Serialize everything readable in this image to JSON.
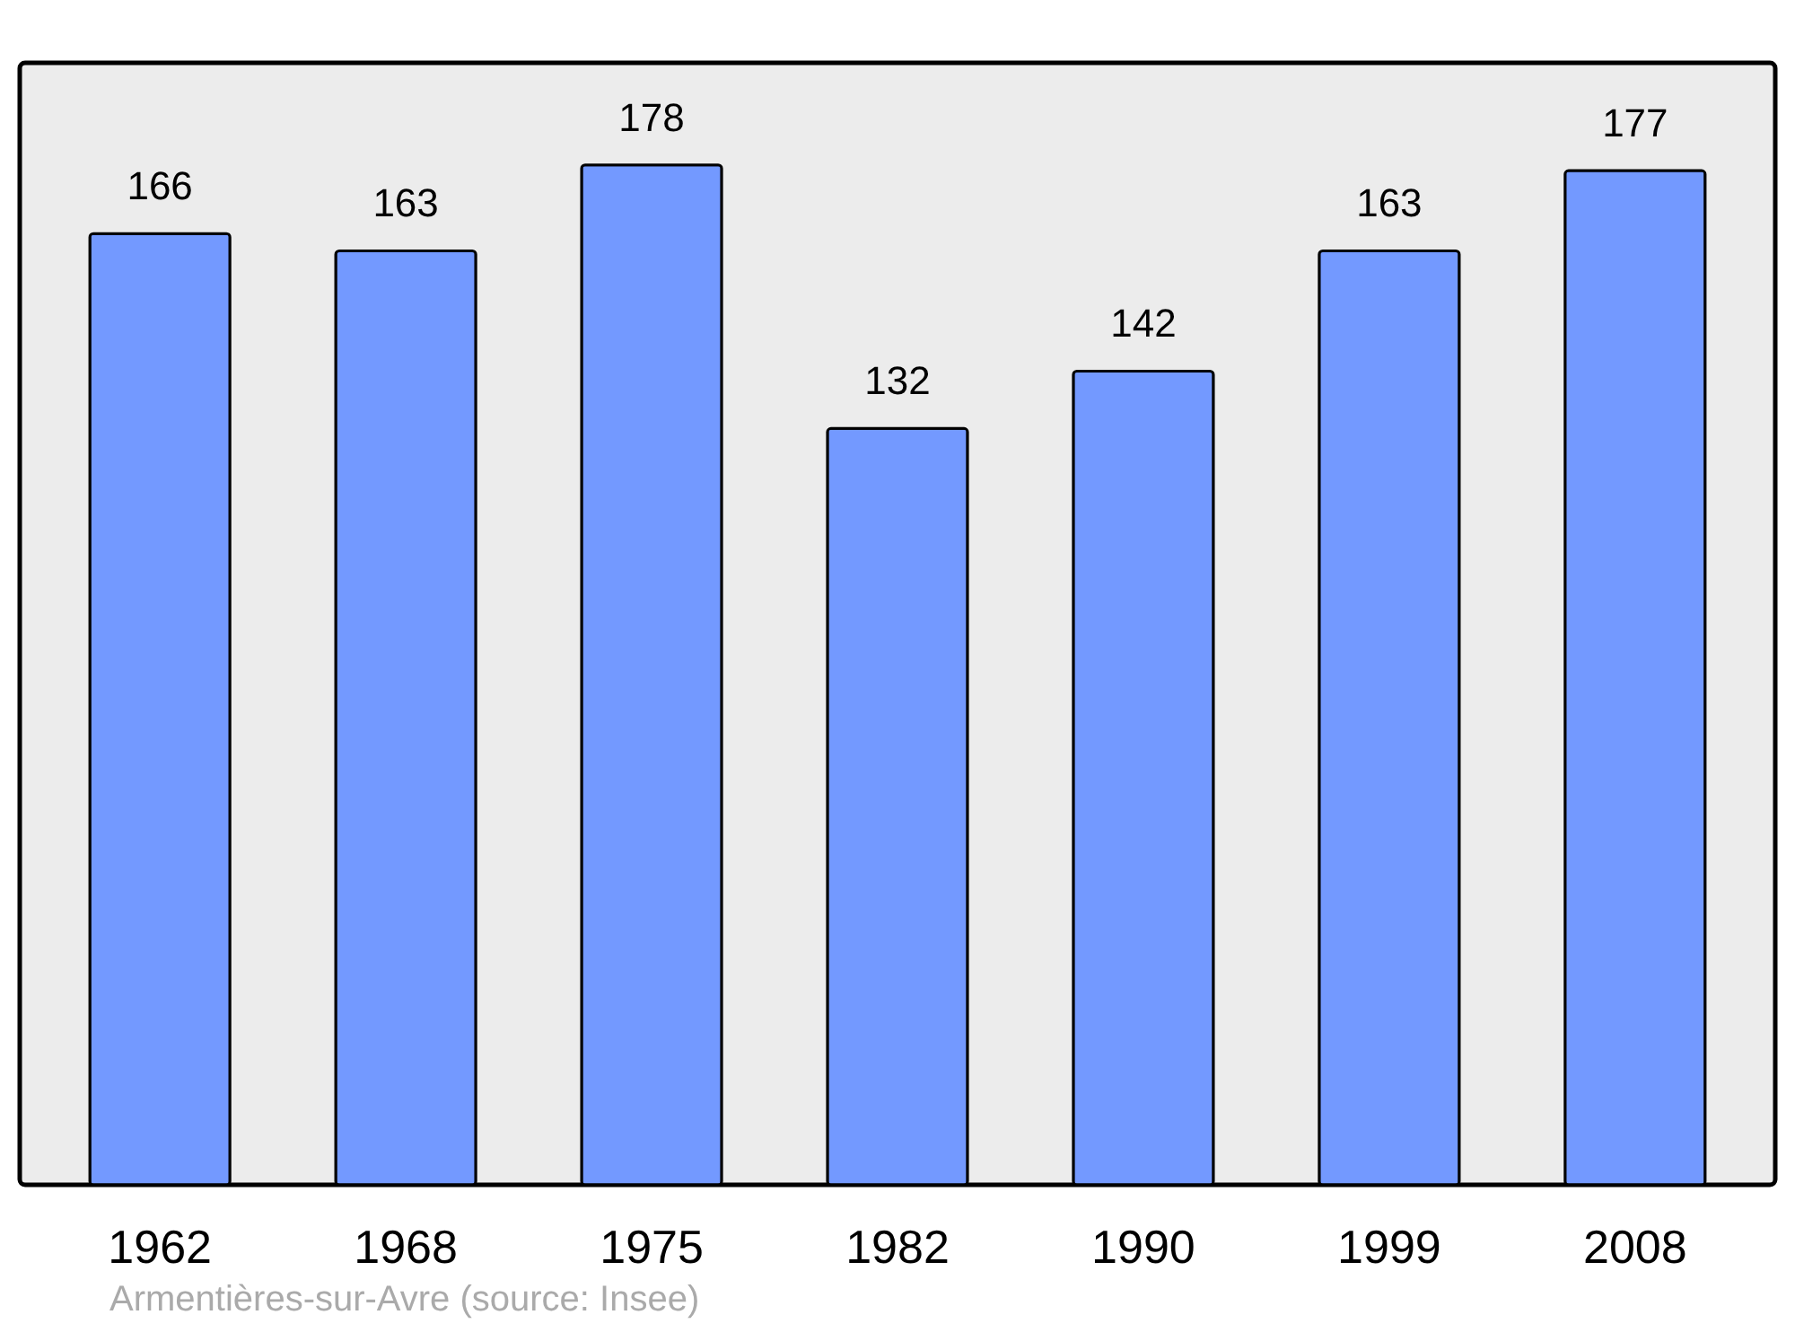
{
  "chart_data": {
    "type": "bar",
    "categories": [
      "1962",
      "1968",
      "1975",
      "1982",
      "1990",
      "1999",
      "2008"
    ],
    "values": [
      166,
      163,
      178,
      132,
      142,
      163,
      177
    ],
    "color": "#7399ff",
    "data_labels": true,
    "annotations": [
      "Armentières-sur-Avre    (source: Insee)"
    ]
  }
}
